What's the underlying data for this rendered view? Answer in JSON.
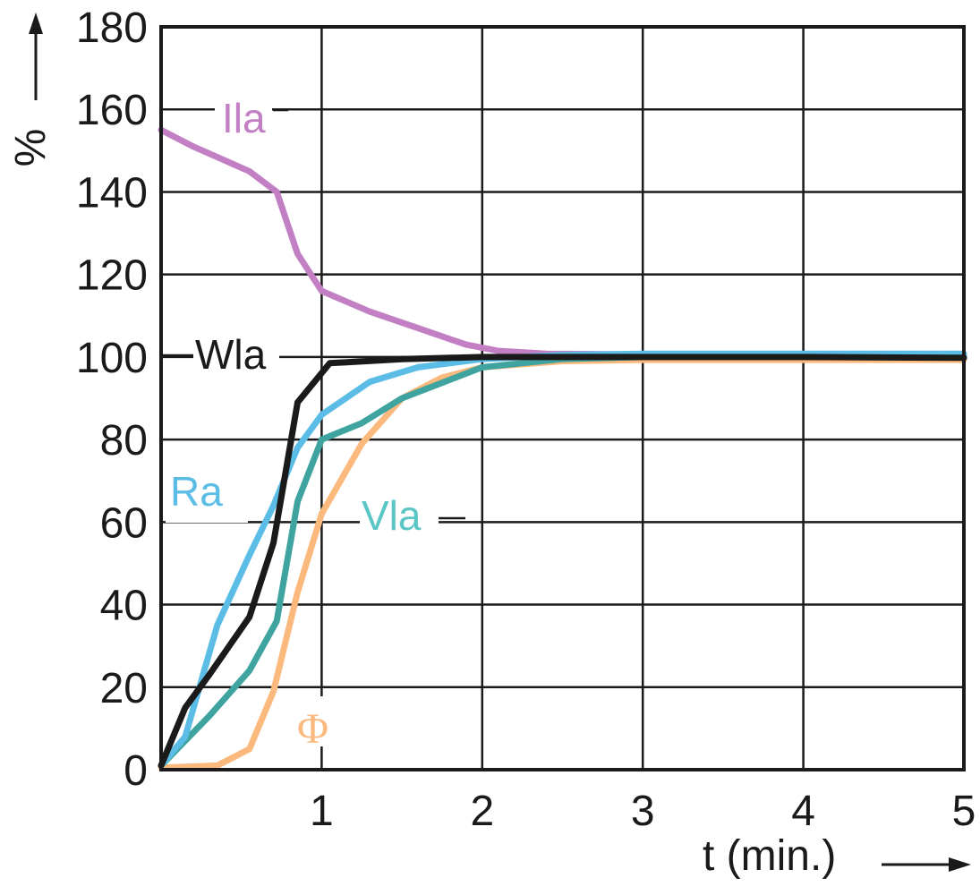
{
  "chart_data": {
    "type": "line",
    "xlabel": "t (min.)",
    "ylabel": "%",
    "xlim": [
      0,
      5
    ],
    "ylim": [
      0,
      180
    ],
    "x_ticks": [
      "1",
      "2",
      "3",
      "4",
      "5"
    ],
    "y_ticks": [
      "0",
      "20",
      "40",
      "60",
      "80",
      "100",
      "120",
      "140",
      "160",
      "180"
    ],
    "grid": true,
    "series": [
      {
        "key": "Ila",
        "name": "Ila",
        "color": "#c27fc4",
        "x": [
          0,
          0.2,
          0.55,
          0.72,
          0.85,
          1.0,
          1.3,
          1.6,
          1.9,
          2.1,
          2.4,
          3.0,
          4.0,
          5.0
        ],
        "values": [
          155,
          151,
          145,
          140,
          125,
          116,
          111,
          107,
          103,
          101.5,
          100.8,
          100.6,
          100.6,
          100.6
        ]
      },
      {
        "key": "Wla",
        "name": "Wla",
        "color": "#1a1a1a",
        "x": [
          0,
          0.15,
          0.3,
          0.55,
          0.7,
          0.85,
          1.05,
          1.5,
          2.0,
          3.0,
          4.0,
          5.0
        ],
        "values": [
          1,
          15,
          23,
          37,
          55,
          89,
          98.5,
          99.5,
          100,
          100,
          100,
          99.8
        ]
      },
      {
        "key": "Ra",
        "name": "Ra",
        "color": "#5bbde6",
        "x": [
          0,
          0.15,
          0.35,
          0.55,
          0.7,
          0.85,
          1.0,
          1.3,
          1.6,
          2.0,
          2.5,
          3.0,
          4.0,
          5.0
        ],
        "values": [
          1,
          8,
          35,
          52,
          64,
          78,
          86,
          94,
          97.5,
          99.5,
          100.5,
          100.8,
          100.8,
          100.8
        ]
      },
      {
        "key": "Vla",
        "name": "Vla",
        "color": "#3fa3a0",
        "x": [
          0,
          0.3,
          0.55,
          0.72,
          0.85,
          1.0,
          1.25,
          1.5,
          2.0,
          2.5,
          3.0,
          4.0,
          5.0
        ],
        "values": [
          1,
          13,
          24,
          36,
          65,
          80,
          84,
          90,
          97.5,
          99.5,
          100,
          100,
          100
        ]
      },
      {
        "key": "Phi",
        "name": "Φ",
        "color": "#fbb97d",
        "x": [
          0,
          0.35,
          0.55,
          0.7,
          0.85,
          1.0,
          1.25,
          1.5,
          1.75,
          2.0,
          2.5,
          3.0,
          4.0,
          5.0
        ],
        "values": [
          0.5,
          1,
          5,
          19,
          43,
          62,
          79,
          90,
          95,
          97.5,
          99,
          99.3,
          99.3,
          99.3
        ]
      }
    ]
  }
}
